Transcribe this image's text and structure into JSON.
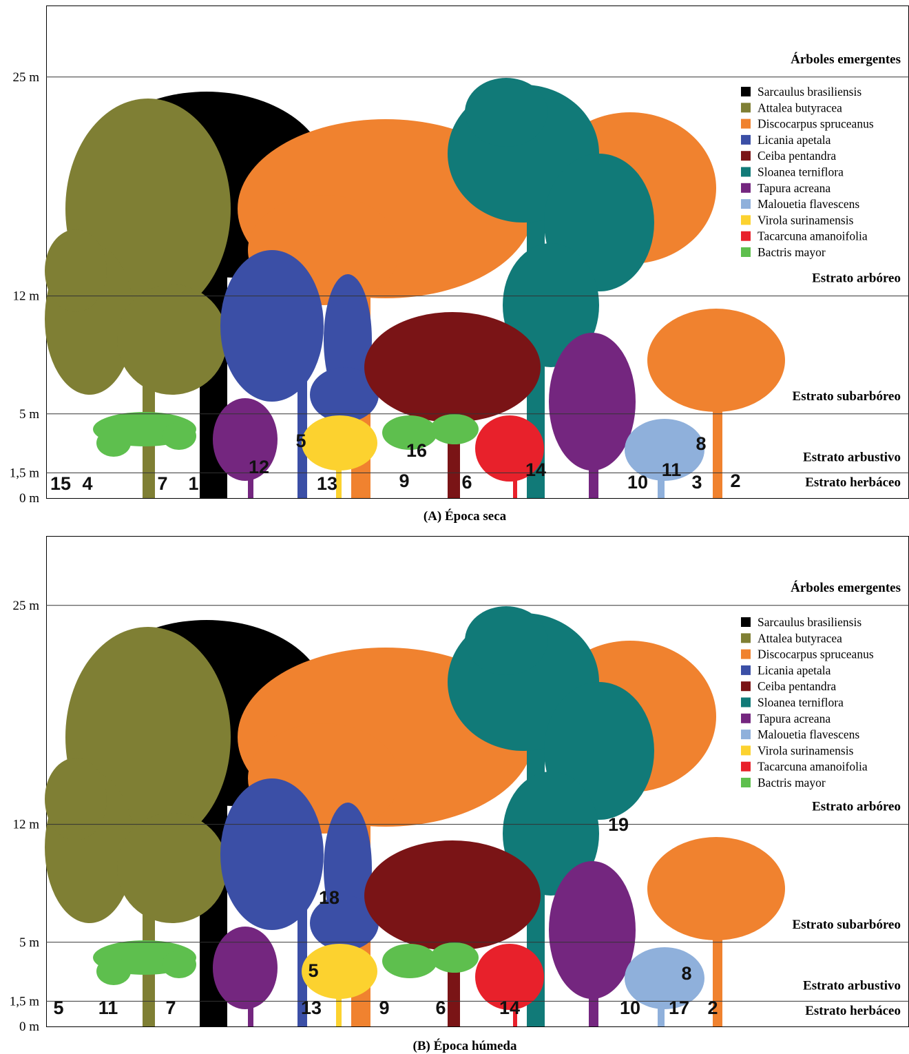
{
  "panels": [
    {
      "caption": "(A) Época seca",
      "height_labels": [
        "25 m",
        "12 m",
        "5 m",
        "1,5 m",
        "0 m"
      ],
      "strata": [
        "Árboles emergentes",
        "Estrato arbóreo",
        "Estrato subarbóreo",
        "Estrato arbustivo",
        "Estrato herbáceo"
      ],
      "legend": [
        {
          "name": "Sarcaulus brasiliensis",
          "color": "#000000"
        },
        {
          "name": "Attalea butyracea",
          "color": "#7f7f34"
        },
        {
          "name": "Discocarpus spruceanus",
          "color": "#f0822f"
        },
        {
          "name": "Licania apetala",
          "color": "#3b4fa6"
        },
        {
          "name": "Ceiba pentandra",
          "color": "#7a1416"
        },
        {
          "name": "Sloanea terniflora",
          "color": "#117a78"
        },
        {
          "name": "Tapura acreana",
          "color": "#74267f"
        },
        {
          "name": "Malouetia flavescens",
          "color": "#8fb0db"
        },
        {
          "name": "Virola surinamensis",
          "color": "#fcd22f"
        },
        {
          "name": "Tacarcuna amanoifolia",
          "color": "#e8212b"
        },
        {
          "name": "Bactris mayor",
          "color": "#5ebf4e"
        }
      ],
      "markers": [
        "15",
        "4",
        "7",
        "1",
        "12",
        "5",
        "13",
        "16",
        "9",
        "6",
        "14",
        "10",
        "11",
        "3",
        "8",
        "2"
      ]
    },
    {
      "caption": "(B) Época húmeda",
      "height_labels": [
        "25 m",
        "12 m",
        "5 m",
        "1,5 m",
        "0 m"
      ],
      "strata": [
        "Árboles emergentes",
        "Estrato arbóreo",
        "Estrato subarbóreo",
        "Estrato arbustivo",
        "Estrato herbáceo"
      ],
      "legend": [
        {
          "name": "Sarcaulus brasiliensis",
          "color": "#000000"
        },
        {
          "name": "Attalea butyracea",
          "color": "#7f7f34"
        },
        {
          "name": "Discocarpus spruceanus",
          "color": "#f0822f"
        },
        {
          "name": "Licania apetala",
          "color": "#3b4fa6"
        },
        {
          "name": "Ceiba pentandra",
          "color": "#7a1416"
        },
        {
          "name": "Sloanea terniflora",
          "color": "#117a78"
        },
        {
          "name": "Tapura acreana",
          "color": "#74267f"
        },
        {
          "name": "Malouetia flavescens",
          "color": "#8fb0db"
        },
        {
          "name": "Virola surinamensis",
          "color": "#fcd22f"
        },
        {
          "name": "Tacarcuna amanoifolia",
          "color": "#e8212b"
        },
        {
          "name": "Bactris mayor",
          "color": "#5ebf4e"
        }
      ],
      "markers": [
        "5",
        "11",
        "7",
        "13",
        "5",
        "18",
        "9",
        "6",
        "14",
        "10",
        "17",
        "2",
        "8",
        "19"
      ]
    }
  ]
}
